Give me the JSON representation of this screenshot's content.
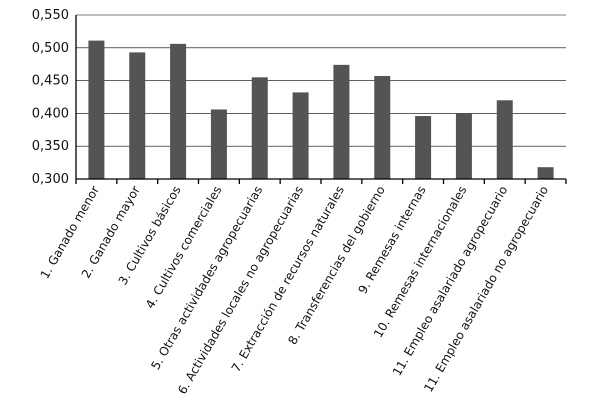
{
  "chart_data": {
    "type": "bar",
    "title": "",
    "xlabel": "",
    "ylabel": "",
    "ylim": [
      0.3,
      0.55
    ],
    "yticks": [
      0.3,
      0.35,
      0.4,
      0.45,
      0.5,
      0.55
    ],
    "ytick_labels": [
      "0,300",
      "0,350",
      "0,400",
      "0,450",
      "0,500",
      "0,550"
    ],
    "grid": true,
    "bar_color": "#545454",
    "categories": [
      "1. Ganado menor",
      "2. Ganado mayor",
      "3. Cultivos básicos",
      "4. Cultivos comerciales",
      "5. Otras actividades agropecuarias",
      "6. Actividades locales no agropecuarias",
      "7. Extracción de recursos naturales",
      "8. Transferencias del gobierno",
      "9. Remesas internas",
      "10. Remesas internacionales",
      "11. Empleo asalariado agropecuario",
      "11. Empleo asalariado no agropecuario"
    ],
    "values": [
      0.511,
      0.493,
      0.506,
      0.406,
      0.455,
      0.432,
      0.474,
      0.457,
      0.396,
      0.4,
      0.42,
      0.318
    ]
  }
}
